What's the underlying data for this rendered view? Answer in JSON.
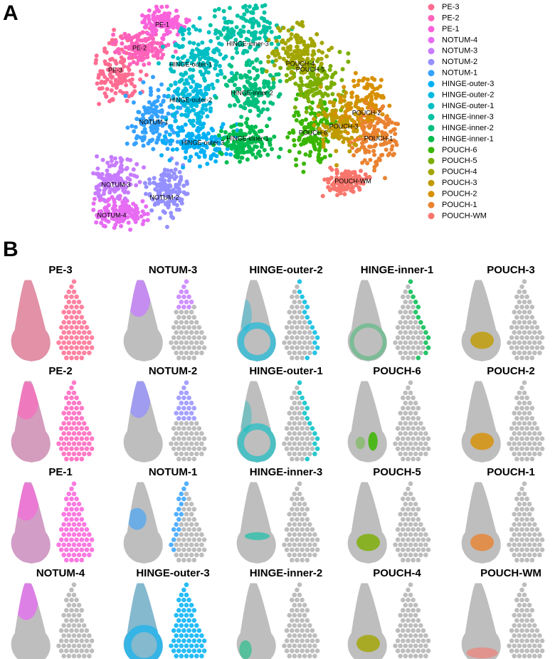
{
  "panel_a": {
    "label": "A",
    "legend": [
      {
        "name": "PE-3",
        "color": "#FF6C91"
      },
      {
        "name": "PE-2",
        "color": "#FF62BC"
      },
      {
        "name": "PE-1",
        "color": "#FA62DB"
      },
      {
        "name": "NOTUM-4",
        "color": "#E76BF3"
      },
      {
        "name": "NOTUM-3",
        "color": "#C77CFF"
      },
      {
        "name": "NOTUM-2",
        "color": "#9590FF"
      },
      {
        "name": "NOTUM-1",
        "color": "#35A2FF"
      },
      {
        "name": "HINGE-outer-3",
        "color": "#00B0F6"
      },
      {
        "name": "HINGE-outer-2",
        "color": "#00BAE0"
      },
      {
        "name": "HINGE-outer-1",
        "color": "#00BFC4"
      },
      {
        "name": "HINGE-inner-3",
        "color": "#00C1A3"
      },
      {
        "name": "HINGE-inner-2",
        "color": "#00BF7D"
      },
      {
        "name": "HINGE-inner-1",
        "color": "#00BB4E"
      },
      {
        "name": "POUCH-6",
        "color": "#39B600"
      },
      {
        "name": "POUCH-5",
        "color": "#7CAE00"
      },
      {
        "name": "POUCH-4",
        "color": "#A3A500"
      },
      {
        "name": "POUCH-3",
        "color": "#C09B00"
      },
      {
        "name": "POUCH-2",
        "color": "#D89000"
      },
      {
        "name": "POUCH-1",
        "color": "#EA8331"
      },
      {
        "name": "POUCH-WM",
        "color": "#F8766D"
      }
    ]
  },
  "panel_b": {
    "label": "B",
    "titles": [
      "PE-3",
      "NOTUM-3",
      "HINGE-outer-2",
      "HINGE-inner-1",
      "POUCH-3",
      "PE-2",
      "NOTUM-2",
      "HINGE-outer-1",
      "POUCH-6",
      "POUCH-2",
      "PE-1",
      "NOTUM-1",
      "HINGE-inner-3",
      "POUCH-5",
      "POUCH-1",
      "NOTUM-4",
      "HINGE-outer-3",
      "HINGE-inner-2",
      "POUCH-4",
      "POUCH-WM"
    ]
  }
}
